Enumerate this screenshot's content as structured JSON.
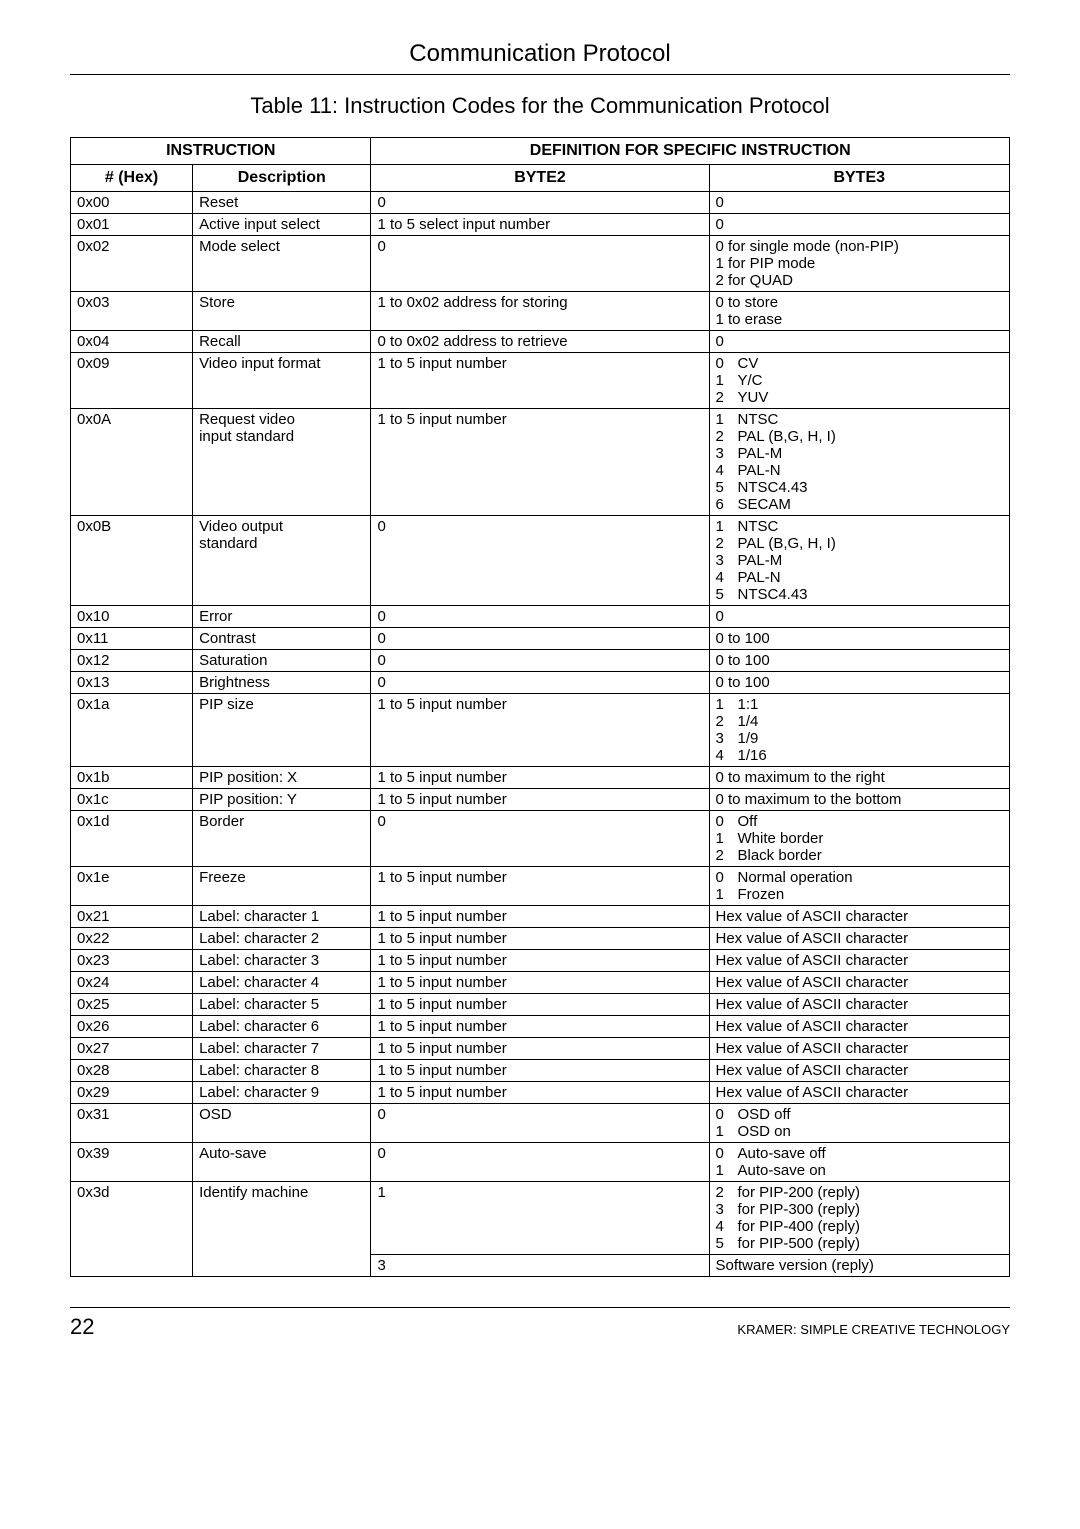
{
  "section_title": "Communication Protocol",
  "table_caption": "Table 11: Instruction Codes for the Communication Protocol",
  "headers": {
    "instruction": "INSTRUCTION",
    "definition": "DEFINITION FOR SPECIFIC INSTRUCTION",
    "hex": "# (Hex)",
    "description": "Description",
    "byte2": "BYTE2",
    "byte3": "BYTE3"
  },
  "rows": [
    {
      "hex": "0x00",
      "desc": "Reset",
      "b2": "0",
      "b3": "0"
    },
    {
      "hex": "0x01",
      "desc": "Active input select",
      "b2": "1 to 5    select input number",
      "b3": "0"
    },
    {
      "hex": "0x02",
      "desc": "Mode select",
      "b2": "0",
      "b3": "0 for single mode (non-PIP)\n1 for PIP mode\n2 for QUAD"
    },
    {
      "hex": "0x03",
      "desc": "Store",
      "b2": "1 to 0x02    address for storing",
      "b3": "0 to store\n1 to erase"
    },
    {
      "hex": "0x04",
      "desc": "Recall",
      "b2": "0 to 0x02    address to retrieve",
      "b3": "0"
    },
    {
      "hex": "0x09",
      "desc": "Video input format",
      "b2": "1 to 5    input number",
      "b3_kv": [
        [
          "0",
          "CV"
        ],
        [
          "1",
          "Y/C"
        ],
        [
          "2",
          "YUV"
        ]
      ]
    },
    {
      "hex": "0x0A",
      "desc": "Request video\ninput standard",
      "b2": "1 to 5    input number",
      "b3_kv": [
        [
          "1",
          "NTSC"
        ],
        [
          "2",
          "PAL (B,G, H, I)"
        ],
        [
          "3",
          "PAL-M"
        ],
        [
          "4",
          "PAL-N"
        ],
        [
          "5",
          "NTSC4.43"
        ],
        [
          "6",
          "SECAM"
        ]
      ]
    },
    {
      "hex": "0x0B",
      "desc": "Video output\nstandard",
      "b2": "0",
      "b3_kv": [
        [
          "1",
          "NTSC"
        ],
        [
          "2",
          "PAL (B,G, H, I)"
        ],
        [
          "3",
          "PAL-M"
        ],
        [
          "4",
          "PAL-N"
        ],
        [
          "5",
          "NTSC4.43"
        ]
      ]
    },
    {
      "hex": "0x10",
      "desc": "Error",
      "b2": "0",
      "b3": "0"
    },
    {
      "hex": "0x11",
      "desc": "Contrast",
      "b2": "0",
      "b3": "0 to 100"
    },
    {
      "hex": "0x12",
      "desc": "Saturation",
      "b2": "0",
      "b3": "0 to 100"
    },
    {
      "hex": "0x13",
      "desc": "Brightness",
      "b2": "0",
      "b3": "0 to 100"
    },
    {
      "hex": "0x1a",
      "desc": "PIP size",
      "b2": "1 to 5    input number",
      "b3_kv": [
        [
          "1",
          "1:1"
        ],
        [
          "2",
          "1/4"
        ],
        [
          "3",
          "1/9"
        ],
        [
          "4",
          "1/16"
        ]
      ]
    },
    {
      "hex": "0x1b",
      "desc": "PIP position: X",
      "b2": "1 to 5    input number",
      "b3": "0 to maximum to the right"
    },
    {
      "hex": "0x1c",
      "desc": "PIP position: Y",
      "b2": "1 to 5    input number",
      "b3": "0 to maximum to the bottom"
    },
    {
      "hex": "0x1d",
      "desc": "Border",
      "b2": "0",
      "b3_kv": [
        [
          "0",
          "Off"
        ],
        [
          "1",
          "White border"
        ],
        [
          "2",
          "Black border"
        ]
      ]
    },
    {
      "hex": "0x1e",
      "desc": "Freeze",
      "b2": "1 to 5    input number",
      "b3_kv": [
        [
          "0",
          "Normal operation"
        ],
        [
          "1",
          "Frozen"
        ]
      ]
    },
    {
      "hex": "0x21",
      "desc": "Label: character 1",
      "b2": "1 to 5    input number",
      "b3": "Hex value of ASCII character"
    },
    {
      "hex": "0x22",
      "desc": "Label: character 2",
      "b2": "1 to 5    input number",
      "b3": "Hex value of ASCII character"
    },
    {
      "hex": "0x23",
      "desc": "Label: character 3",
      "b2": "1 to 5    input number",
      "b3": "Hex value of ASCII character"
    },
    {
      "hex": "0x24",
      "desc": "Label: character 4",
      "b2": "1 to 5    input number",
      "b3": "Hex value of ASCII character"
    },
    {
      "hex": "0x25",
      "desc": "Label: character 5",
      "b2": "1 to 5    input number",
      "b3": "Hex value of ASCII character"
    },
    {
      "hex": "0x26",
      "desc": "Label: character 6",
      "b2": "1 to 5    input number",
      "b3": "Hex value of ASCII character"
    },
    {
      "hex": "0x27",
      "desc": "Label: character 7",
      "b2": "1 to 5    input number",
      "b3": "Hex value of ASCII character"
    },
    {
      "hex": "0x28",
      "desc": "Label: character 8",
      "b2": "1 to 5    input number",
      "b3": "Hex value of ASCII character"
    },
    {
      "hex": "0x29",
      "desc": "Label: character 9",
      "b2": "1 to 5    input number",
      "b3": "Hex value of ASCII character"
    },
    {
      "hex": "0x31",
      "desc": "OSD",
      "b2": "0",
      "b3_kv": [
        [
          "0",
          "OSD off"
        ],
        [
          "1",
          "OSD on"
        ]
      ]
    },
    {
      "hex": "0x39",
      "desc": "Auto-save",
      "b2": "0",
      "b3_kv": [
        [
          "0",
          "Auto-save off"
        ],
        [
          "1",
          "Auto-save on"
        ]
      ]
    }
  ],
  "identify_row": {
    "hex": "0x3d",
    "desc": "Identify machine",
    "b2_1": "1",
    "b3_1_kv": [
      [
        "2",
        "for PIP-200 (reply)"
      ],
      [
        "3",
        "for PIP-300 (reply)"
      ],
      [
        "4",
        "for PIP-400 (reply)"
      ],
      [
        "5",
        "for PIP-500 (reply)"
      ]
    ],
    "b2_2": "3",
    "b3_2": "Software version (reply)"
  },
  "footer": {
    "page": "22",
    "brand": "KRAMER:  SIMPLE CREATIVE TECHNOLOGY"
  }
}
